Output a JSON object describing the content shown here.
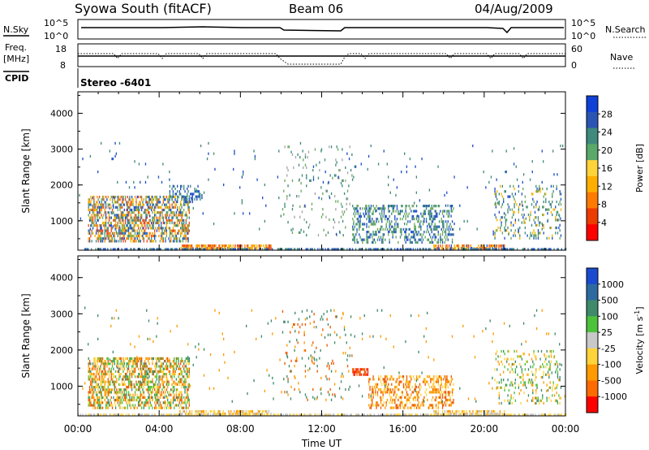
{
  "header": {
    "title": "Syowa South (fitACF)",
    "beam": "Beam 06",
    "date": "04/Aug/2009"
  },
  "aux": {
    "nsky_label": "N.Sky",
    "freq_label": "Freq.",
    "freq_unit": "[MHz]",
    "cpid_label": "CPID",
    "nsearch_label": "N.Search",
    "nave_label": "Nave",
    "noise_left_ticks": [
      "10^5",
      "10^0"
    ],
    "noise_right_ticks": [
      "10^5",
      "10^0"
    ],
    "freq_ticks": [
      "18",
      "8"
    ],
    "nave_ticks": [
      "60",
      "0"
    ],
    "cpid_text": "Stereo -6401"
  },
  "chart_data": [
    {
      "type": "heatmap",
      "name": "power",
      "ylabel": "Slant Range [km]",
      "ylim": [
        180,
        4600
      ],
      "xlim": [
        0,
        24
      ],
      "y_ticks": [
        1000,
        2000,
        3000,
        4000
      ],
      "colorbar_label": "Power [dB]",
      "colorbar_ticks": [
        4,
        8,
        12,
        16,
        20,
        24,
        28
      ],
      "colorbar_colors": [
        "#1040d8",
        "#2b55b5",
        "#3f8a7d",
        "#5aa86a",
        "#ffd33a",
        "#ffae00",
        "#ff7a00",
        "#ee3b00",
        "#ff0000"
      ],
      "scatter_colors": [
        "#1f4fc8",
        "#3f8a7d",
        "#6aa95c",
        "#f2b400",
        "#ff8c00",
        "#e8461c",
        "#a6a6a6"
      ],
      "regions": [
        {
          "x": [
            0.5,
            5.5
          ],
          "y": [
            400,
            1700
          ],
          "density": 0.55,
          "colors": [
            0,
            1,
            2,
            3,
            4,
            5
          ]
        },
        {
          "x": [
            4.5,
            6.0
          ],
          "y": [
            1500,
            2000
          ],
          "density": 0.35,
          "colors": [
            0,
            1
          ]
        },
        {
          "x": [
            5.0,
            9.5
          ],
          "y": [
            220,
            340
          ],
          "density": 0.7,
          "colors": [
            4,
            5,
            3
          ]
        },
        {
          "x": [
            10.0,
            13.5
          ],
          "y": [
            600,
            3100
          ],
          "density": 0.06,
          "colors": [
            1,
            2,
            6
          ]
        },
        {
          "x": [
            13.5,
            18.5
          ],
          "y": [
            400,
            1450
          ],
          "density": 0.35,
          "colors": [
            0,
            1,
            2
          ]
        },
        {
          "x": [
            17.5,
            21.0
          ],
          "y": [
            220,
            340
          ],
          "density": 0.7,
          "colors": [
            4,
            5,
            3,
            0
          ]
        },
        {
          "x": [
            20.5,
            23.8
          ],
          "y": [
            500,
            2000
          ],
          "density": 0.2,
          "colors": [
            0,
            1,
            2,
            3
          ]
        },
        {
          "x": [
            0.0,
            24.0
          ],
          "y": [
            200,
            240
          ],
          "density": 0.6,
          "colors": [
            0,
            1
          ]
        },
        {
          "x": [
            0.0,
            24.0
          ],
          "y": [
            600,
            3200
          ],
          "density": 0.012,
          "colors": [
            0,
            1
          ]
        }
      ]
    },
    {
      "type": "heatmap",
      "name": "velocity",
      "ylabel": "Slant Range [km]",
      "xlabel": "Time UT",
      "ylim": [
        180,
        4600
      ],
      "xlim": [
        0,
        24
      ],
      "y_ticks": [
        1000,
        2000,
        3000,
        4000
      ],
      "x_tick_labels": [
        "00:00",
        "04:00",
        "08:00",
        "12:00",
        "16:00",
        "20:00",
        "00:00"
      ],
      "colorbar_label": "Velocity [m s",
      "colorbar_label_sup": "-1",
      "colorbar_label_end": "]",
      "colorbar_ticks": [
        "1000",
        "500",
        "100",
        "25",
        "-25",
        "-100",
        "-500",
        "-1000"
      ],
      "colorbar_colors": [
        "#1a4ad0",
        "#2d6aa0",
        "#3f8a6a",
        "#4cc23a",
        "#c8c8c8",
        "#ffd33a",
        "#ff9a00",
        "#ff6a00",
        "#ff0000"
      ],
      "scatter_colors": [
        "#2d6aa0",
        "#3f8a6a",
        "#4cc23a",
        "#ffd33a",
        "#ff9a00",
        "#ee5a00",
        "#ff1a00",
        "#bfbfbf"
      ],
      "regions": [
        {
          "x": [
            0.5,
            5.5
          ],
          "y": [
            400,
            1800
          ],
          "density": 0.55,
          "colors": [
            4,
            5,
            3,
            1,
            2
          ]
        },
        {
          "x": [
            5.0,
            9.5
          ],
          "y": [
            220,
            340
          ],
          "density": 0.6,
          "colors": [
            3,
            7,
            4
          ]
        },
        {
          "x": [
            10.0,
            13.5
          ],
          "y": [
            600,
            3100
          ],
          "density": 0.06,
          "colors": [
            4,
            5,
            1
          ]
        },
        {
          "x": [
            13.5,
            14.3
          ],
          "y": [
            1300,
            1500
          ],
          "density": 0.8,
          "colors": [
            6,
            5
          ]
        },
        {
          "x": [
            14.3,
            18.5
          ],
          "y": [
            400,
            1300
          ],
          "density": 0.4,
          "colors": [
            4,
            5,
            3
          ]
        },
        {
          "x": [
            17.5,
            21.0
          ],
          "y": [
            220,
            340
          ],
          "density": 0.6,
          "colors": [
            3,
            4,
            7
          ]
        },
        {
          "x": [
            20.5,
            23.8
          ],
          "y": [
            500,
            2000
          ],
          "density": 0.2,
          "colors": [
            3,
            4,
            1,
            2
          ]
        },
        {
          "x": [
            0.0,
            24.0
          ],
          "y": [
            200,
            240
          ],
          "density": 0.6,
          "colors": [
            7,
            3
          ]
        },
        {
          "x": [
            0.0,
            24.0
          ],
          "y": [
            600,
            3200
          ],
          "density": 0.012,
          "colors": [
            4,
            1
          ]
        }
      ]
    }
  ]
}
